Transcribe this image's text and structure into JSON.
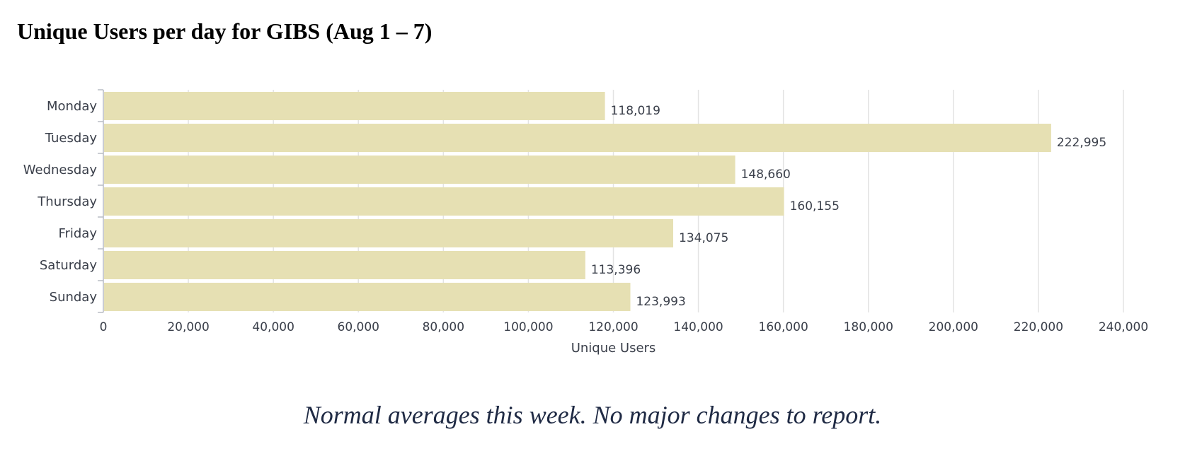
{
  "page": {
    "title": "Unique Users per day for GIBS (Aug 1 – 7)",
    "footnote": "Normal averages this week.  No major changes to report."
  },
  "colors": {
    "bar_fill": "#e6e0b3",
    "grid": "#e3e3e3",
    "axis": "#b8bcc4",
    "text": "#3a3f4a",
    "footnote": "#1f2a44"
  },
  "chart_data": {
    "type": "bar",
    "orientation": "horizontal",
    "categories": [
      "Monday",
      "Tuesday",
      "Wednesday",
      "Thursday",
      "Friday",
      "Saturday",
      "Sunday"
    ],
    "values": [
      118019,
      222995,
      148660,
      160155,
      134075,
      113396,
      123993
    ],
    "value_labels": [
      "118,019",
      "222,995",
      "148,660",
      "160,155",
      "134,075",
      "113,396",
      "123,993"
    ],
    "xlabel": "Unique Users",
    "ylabel": "",
    "xlim": [
      0,
      240000
    ],
    "x_ticks": [
      0,
      20000,
      40000,
      60000,
      80000,
      100000,
      120000,
      140000,
      160000,
      180000,
      200000,
      220000,
      240000
    ],
    "x_tick_labels": [
      "0",
      "20,000",
      "40,000",
      "60,000",
      "80,000",
      "100,000",
      "120,000",
      "140,000",
      "160,000",
      "180,000",
      "200,000",
      "220,000",
      "240,000"
    ],
    "grid": true,
    "legend": "none"
  }
}
